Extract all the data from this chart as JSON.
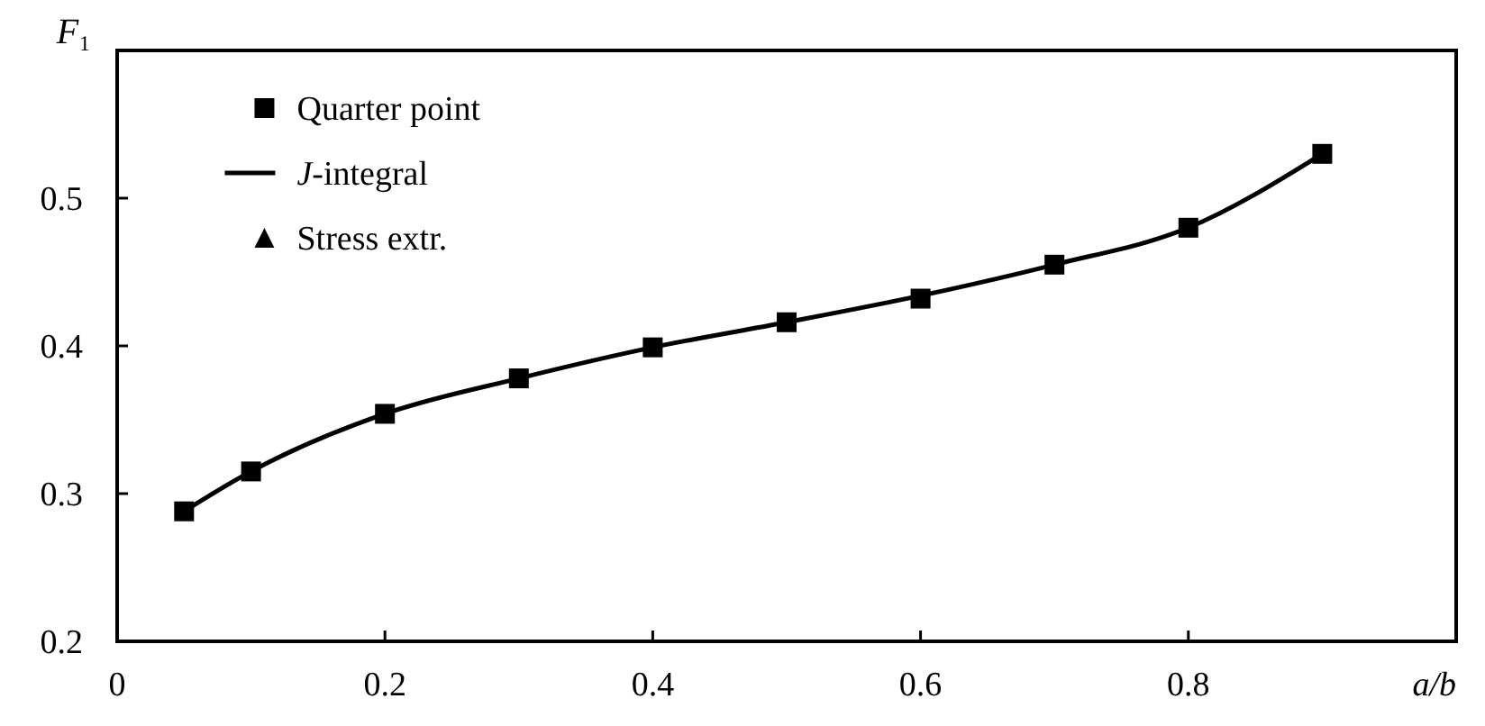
{
  "chart_data": {
    "type": "scatter",
    "xlabel": "a/b",
    "ylabel": "F₁",
    "x": [
      0.05,
      0.1,
      0.2,
      0.3,
      0.4,
      0.5,
      0.6,
      0.7,
      0.8,
      0.9
    ],
    "xlim": [
      0,
      1
    ],
    "xticks": [
      0,
      0.2,
      0.4,
      0.6,
      0.8
    ],
    "ylim": [
      0.2,
      0.6
    ],
    "yticks": [
      0.2,
      0.3,
      0.4,
      0.5
    ],
    "legend": "top left",
    "grid": false,
    "series": [
      {
        "name": "Quarter point",
        "marker": "square",
        "color": "#000000",
        "values": [
          0.288,
          0.315,
          0.354,
          0.378,
          0.399,
          0.416,
          0.432,
          0.455,
          0.48,
          0.53
        ]
      },
      {
        "name": "J-integral",
        "type": "line",
        "marker": "none",
        "line_style": "solid",
        "color": "#000000",
        "values": [
          0.288,
          0.315,
          0.354,
          0.378,
          0.399,
          0.416,
          0.434,
          0.455,
          0.48,
          0.53
        ]
      },
      {
        "name": "Stress extr.",
        "marker": "triangle",
        "color": "#000000",
        "values": [
          null,
          null,
          null,
          null,
          null,
          null,
          null,
          null,
          null,
          null
        ]
      }
    ]
  }
}
